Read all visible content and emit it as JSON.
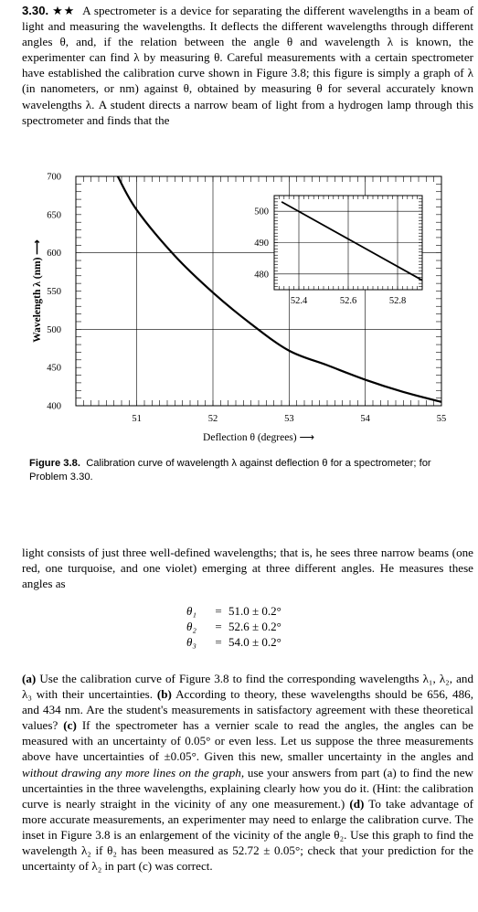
{
  "problem": {
    "number": "3.30.",
    "stars": "★★",
    "intro": "A spectrometer is a device for separating the different wavelengths in a beam of light and measuring the wavelengths. It deflects the different wavelengths through different angles θ, and, if the relation between the angle θ and wavelength λ is known, the experimenter can find λ by measuring θ. Careful measurements with a certain spectrometer have established the calibration curve shown in Figure 3.8; this figure is simply a graph of λ (in nanometers, or nm) against θ, obtained by measuring θ for several accurately known wavelengths λ. A student directs a narrow beam of light from a hydrogen lamp through this spectrometer and finds that the",
    "continuation": "light consists of just three well-defined wavelengths; that is, he sees three narrow beams (one red, one turquoise, and one violet) emerging at three different angles. He measures these angles as",
    "equations": [
      {
        "lhs": "θ₁",
        "rel": "=",
        "rhs": "51.0 ± 0.2°"
      },
      {
        "lhs": "θ₂",
        "rel": "=",
        "rhs": "52.6 ± 0.2°"
      },
      {
        "lhs": "θ₃",
        "rel": "=",
        "rhs": "54.0 ± 0.2°"
      }
    ],
    "part_a_label": "(a)",
    "part_a": "Use the calibration curve of Figure 3.8 to find the corresponding wavelengths λ₁, λ₂, and λ₃ with their uncertainties.",
    "part_b_label": "(b)",
    "part_b": "According to theory, these wavelengths should be 656, 486, and 434 nm. Are the student's measurements in satisfactory agreement with these theoretical values?",
    "part_c_label": "(c)",
    "part_c_1": "If the spectrometer has a vernier scale to read the angles, the angles can be measured with an uncertainty of 0.05° or even less. Let us suppose the three measurements above have uncertainties of ±0.05°. Given this new, smaller uncertainty in the angles and",
    "part_c_emph": "without drawing any more lines on the graph,",
    "part_c_2": "use your answers from part (a) to find the new uncertainties in the three wavelengths, explaining clearly how you do it. (Hint: the calibration curve is nearly straight in the vicinity of any one measurement.)",
    "part_d_label": "(d)",
    "part_d": "To take advantage of more accurate measurements, an experimenter may need to enlarge the calibration curve. The inset in Figure 3.8 is an enlargement of the vicinity of the angle θ₂. Use this graph to find the wavelength λ₂ if θ₂ has been measured as 52.72 ± 0.05°; check that your prediction for the uncertainty of λ₂ in part (c) was correct."
  },
  "figure": {
    "caption_label": "Figure 3.8.",
    "caption_text": "Calibration curve of wavelength λ against deflection θ for a spectrometer; for Problem 3.30."
  },
  "chart_data": [
    {
      "type": "line",
      "title": "",
      "xlabel": "Deflection θ (degrees) ⟶",
      "ylabel": "Wavelength λ (nm) ⟶",
      "xlim": [
        50.2,
        55
      ],
      "ylim": [
        400,
        700
      ],
      "x_ticks": [
        "51",
        "52",
        "53",
        "54",
        "55"
      ],
      "y_ticks": [
        "700",
        "650",
        "600",
        "550",
        "500",
        "450",
        "400"
      ],
      "grid": true,
      "series": [
        {
          "x": [
            50.75,
            51.0,
            51.5,
            52.0,
            52.5,
            53.0,
            53.5,
            54.0,
            54.5,
            55.0
          ],
          "y": [
            700,
            656,
            596,
            548,
            507,
            472,
            453,
            434,
            418,
            405
          ]
        }
      ]
    },
    {
      "type": "line",
      "title": "",
      "xlabel": "",
      "ylabel": "",
      "xlim": [
        52.3,
        52.9
      ],
      "ylim": [
        475,
        505
      ],
      "x_ticks": [
        "52.4",
        "52.6",
        "52.8"
      ],
      "y_ticks": [
        "500",
        "490",
        "480"
      ],
      "grid": true,
      "series": [
        {
          "x": [
            52.33,
            52.9
          ],
          "y": [
            503,
            478
          ]
        }
      ]
    }
  ]
}
